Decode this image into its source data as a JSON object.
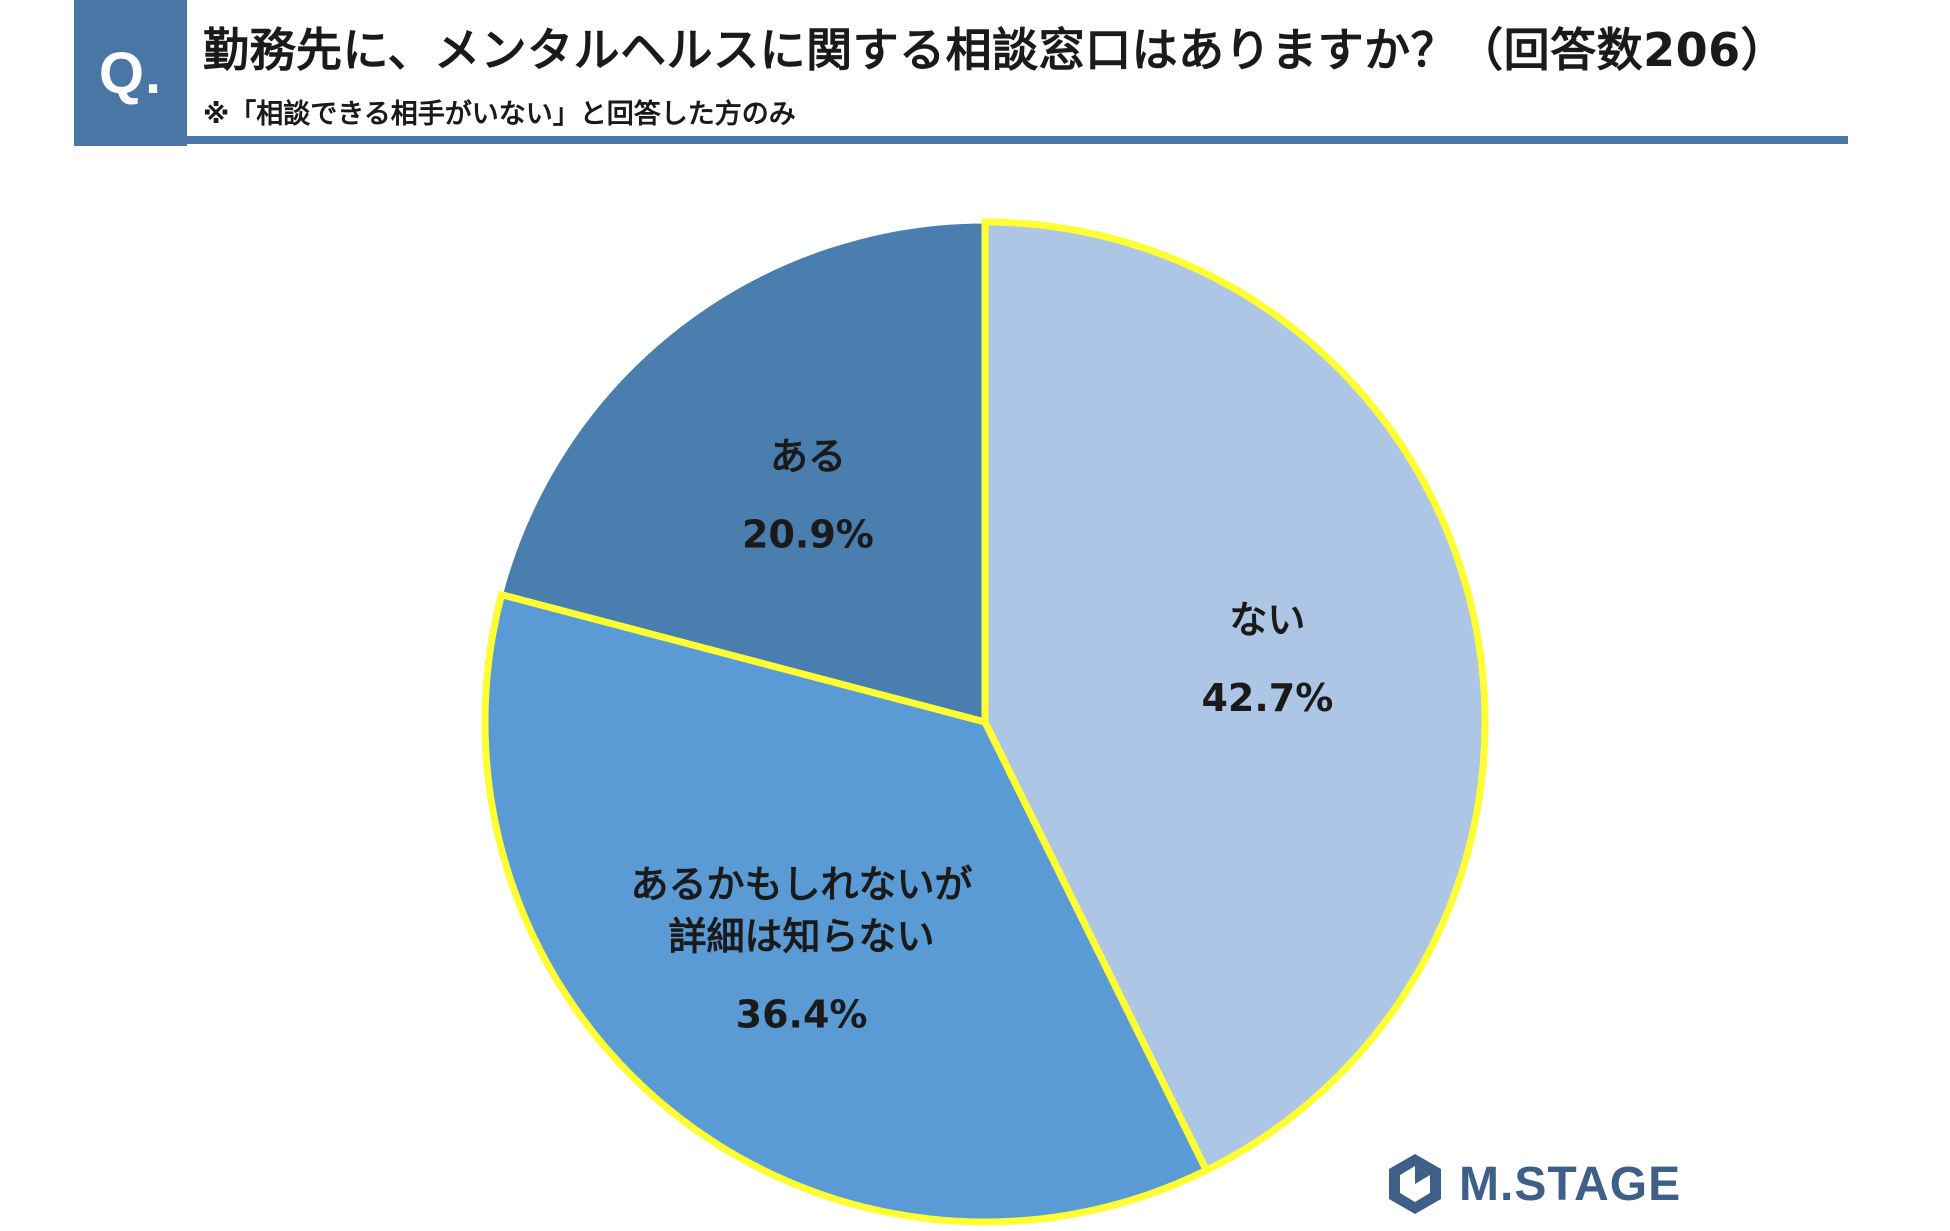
{
  "header": {
    "q_label": "Q.",
    "title": "勤務先に、メンタルヘルスに関する相談窓口はありますか？（回答数206）",
    "subtitle": "※「相談できる相手がいない」と回答した方のみ"
  },
  "chart_data": {
    "type": "pie",
    "start_angle_deg": 0,
    "direction": "clockwise",
    "slices": [
      {
        "label": "ない",
        "value": 42.7,
        "value_label": "42.7%",
        "color": "#adc6e5"
      },
      {
        "label": "あるかもしれないが\n詳細は知らない",
        "value": 36.4,
        "value_label": "36.4%",
        "color": "#5b9bd5"
      },
      {
        "label": "ある",
        "value": 20.9,
        "value_label": "20.9%",
        "color": "#4a7eae"
      }
    ],
    "highlight_border_color": "#ffff33",
    "highlighted_slices": [
      "ない",
      "あるかもしれないが\n詳細は知らない"
    ]
  },
  "logo": {
    "text": "M.STAGE",
    "color": "#3e5f87"
  },
  "colors": {
    "accent": "#4a76a6"
  }
}
